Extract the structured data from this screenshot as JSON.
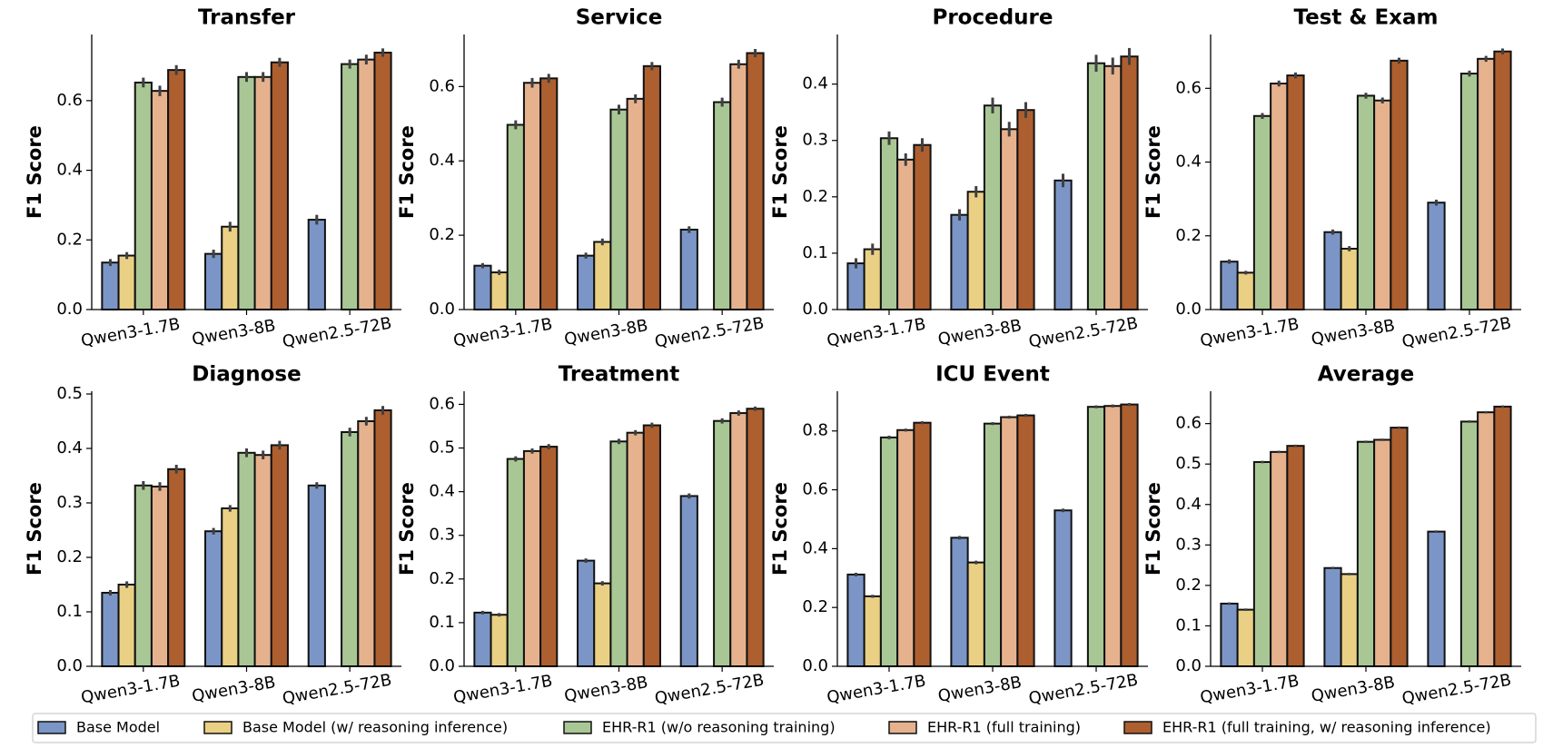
{
  "legend": {
    "series": [
      {
        "name": "Base Model",
        "color": "#7b96c6"
      },
      {
        "name": "Base Model (w/ reasoning inference)",
        "color": "#ead084"
      },
      {
        "name": "EHR-R1 (w/o reasoning training)",
        "color": "#a9c795"
      },
      {
        "name": "EHR-R1 (full training)",
        "color": "#e6b28e"
      },
      {
        "name": "EHR-R1 (full training, w/ reasoning inference)",
        "color": "#ad5f2f"
      }
    ]
  },
  "chart_data": [
    {
      "type": "bar",
      "title": "Transfer",
      "ylabel": "F1 Score",
      "categories": [
        "Qwen3-1.7B",
        "Qwen3-8B",
        "Qwen2.5-72B"
      ],
      "ylim": [
        0,
        0.79
      ],
      "yticks": [
        {
          "value": 0,
          "label": "0.0"
        },
        0.2,
        0.4,
        0.6
      ],
      "series": [
        {
          "values": [
            0.135,
            0.16,
            0.258
          ],
          "errors": [
            0.01,
            0.012,
            0.014
          ]
        },
        {
          "values": [
            0.155,
            0.238,
            null
          ],
          "errors": [
            0.01,
            0.014,
            null
          ]
        },
        {
          "values": [
            0.652,
            0.668,
            0.705
          ],
          "errors": [
            0.014,
            0.014,
            0.013
          ]
        },
        {
          "values": [
            0.628,
            0.668,
            0.718
          ],
          "errors": [
            0.015,
            0.014,
            0.014
          ]
        },
        {
          "values": [
            0.688,
            0.71,
            0.738
          ],
          "errors": [
            0.014,
            0.013,
            0.012
          ]
        }
      ]
    },
    {
      "type": "bar",
      "title": "Service",
      "ylabel": "F1 Score",
      "categories": [
        "Qwen3-1.7B",
        "Qwen3-8B",
        "Qwen2.5-72B"
      ],
      "ylim": [
        0,
        0.74
      ],
      "yticks": [
        {
          "value": 0,
          "label": "0.0"
        },
        0.2,
        0.4,
        0.6
      ],
      "series": [
        {
          "values": [
            0.118,
            0.145,
            0.215
          ],
          "errors": [
            0.007,
            0.008,
            0.009
          ]
        },
        {
          "values": [
            0.1,
            0.182,
            null
          ],
          "errors": [
            0.007,
            0.009,
            null
          ]
        },
        {
          "values": [
            0.497,
            0.538,
            0.558
          ],
          "errors": [
            0.012,
            0.013,
            0.012
          ]
        },
        {
          "values": [
            0.61,
            0.567,
            0.66
          ],
          "errors": [
            0.013,
            0.012,
            0.012
          ]
        },
        {
          "values": [
            0.622,
            0.655,
            0.69
          ],
          "errors": [
            0.012,
            0.011,
            0.011
          ]
        }
      ]
    },
    {
      "type": "bar",
      "title": "Procedure",
      "ylabel": "F1 Score",
      "categories": [
        "Qwen3-1.7B",
        "Qwen3-8B",
        "Qwen2.5-72B"
      ],
      "ylim": [
        0,
        0.488
      ],
      "yticks": [
        {
          "value": 0,
          "label": "0.0"
        },
        0.1,
        0.2,
        0.3,
        0.4
      ],
      "series": [
        {
          "values": [
            0.082,
            0.168,
            0.229
          ],
          "errors": [
            0.009,
            0.01,
            0.012
          ]
        },
        {
          "values": [
            0.107,
            0.209,
            null
          ],
          "errors": [
            0.01,
            0.01,
            null
          ]
        },
        {
          "values": [
            0.304,
            0.362,
            0.437
          ],
          "errors": [
            0.012,
            0.014,
            0.015
          ]
        },
        {
          "values": [
            0.266,
            0.32,
            0.432
          ],
          "errors": [
            0.011,
            0.013,
            0.015
          ]
        },
        {
          "values": [
            0.292,
            0.354,
            0.449
          ],
          "errors": [
            0.012,
            0.014,
            0.015
          ]
        }
      ]
    },
    {
      "type": "bar",
      "title": "Test & Exam",
      "ylabel": "F1 Score",
      "categories": [
        "Qwen3-1.7B",
        "Qwen3-8B",
        "Qwen2.5-72B"
      ],
      "ylim": [
        0,
        0.746
      ],
      "yticks": [
        {
          "value": 0,
          "label": "0.0"
        },
        0.2,
        0.4,
        0.6
      ],
      "series": [
        {
          "values": [
            0.13,
            0.21,
            0.29
          ],
          "errors": [
            0.006,
            0.007,
            0.008
          ]
        },
        {
          "values": [
            0.1,
            0.165,
            null
          ],
          "errors": [
            0.005,
            0.007,
            null
          ]
        },
        {
          "values": [
            0.525,
            0.58,
            0.64
          ],
          "errors": [
            0.008,
            0.008,
            0.008
          ]
        },
        {
          "values": [
            0.613,
            0.567,
            0.68
          ],
          "errors": [
            0.008,
            0.008,
            0.008
          ]
        },
        {
          "values": [
            0.635,
            0.675,
            0.7
          ],
          "errors": [
            0.008,
            0.008,
            0.008
          ]
        }
      ]
    },
    {
      "type": "bar",
      "title": "Diagnose",
      "ylabel": "F1 Score",
      "categories": [
        "Qwen3-1.7B",
        "Qwen3-8B",
        "Qwen2.5-72B"
      ],
      "ylim": [
        0,
        0.505
      ],
      "yticks": [
        {
          "value": 0,
          "label": "0.0"
        },
        0.1,
        0.2,
        0.3,
        0.4,
        0.5
      ],
      "series": [
        {
          "values": [
            0.135,
            0.248,
            0.332
          ],
          "errors": [
            0.005,
            0.006,
            0.006
          ]
        },
        {
          "values": [
            0.15,
            0.29,
            null
          ],
          "errors": [
            0.006,
            0.006,
            null
          ]
        },
        {
          "values": [
            0.332,
            0.392,
            0.43
          ],
          "errors": [
            0.008,
            0.008,
            0.008
          ]
        },
        {
          "values": [
            0.33,
            0.388,
            0.45
          ],
          "errors": [
            0.008,
            0.008,
            0.008
          ]
        },
        {
          "values": [
            0.362,
            0.406,
            0.47
          ],
          "errors": [
            0.008,
            0.008,
            0.008
          ]
        }
      ]
    },
    {
      "type": "bar",
      "title": "Treatment",
      "ylabel": "F1 Score",
      "categories": [
        "Qwen3-1.7B",
        "Qwen3-8B",
        "Qwen2.5-72B"
      ],
      "ylim": [
        0,
        0.63
      ],
      "yticks": [
        {
          "value": 0,
          "label": "0.0"
        },
        0.1,
        0.2,
        0.3,
        0.4,
        0.5,
        0.6
      ],
      "series": [
        {
          "values": [
            0.123,
            0.242,
            0.39
          ],
          "errors": [
            0.004,
            0.005,
            0.006
          ]
        },
        {
          "values": [
            0.118,
            0.19,
            null
          ],
          "errors": [
            0.004,
            0.005,
            null
          ]
        },
        {
          "values": [
            0.475,
            0.515,
            0.562
          ],
          "errors": [
            0.006,
            0.006,
            0.006
          ]
        },
        {
          "values": [
            0.493,
            0.535,
            0.58
          ],
          "errors": [
            0.006,
            0.006,
            0.006
          ]
        },
        {
          "values": [
            0.503,
            0.552,
            0.59
          ],
          "errors": [
            0.006,
            0.006,
            0.005
          ]
        }
      ]
    },
    {
      "type": "bar",
      "title": "ICU Event",
      "ylabel": "F1 Score",
      "categories": [
        "Qwen3-1.7B",
        "Qwen3-8B",
        "Qwen2.5-72B"
      ],
      "ylim": [
        0,
        0.935
      ],
      "yticks": [
        {
          "value": 0,
          "label": "0.0"
        },
        0.2,
        0.4,
        0.6,
        0.8
      ],
      "series": [
        {
          "values": [
            0.312,
            0.437,
            0.53
          ],
          "errors": [
            0.006,
            0.006,
            0.006
          ]
        },
        {
          "values": [
            0.238,
            0.353,
            null
          ],
          "errors": [
            0.005,
            0.006,
            null
          ]
        },
        {
          "values": [
            0.778,
            0.825,
            0.882
          ],
          "errors": [
            0.006,
            0.005,
            0.005
          ]
        },
        {
          "values": [
            0.803,
            0.847,
            0.885
          ],
          "errors": [
            0.005,
            0.005,
            0.005
          ]
        },
        {
          "values": [
            0.828,
            0.853,
            0.89
          ],
          "errors": [
            0.005,
            0.005,
            0.005
          ]
        }
      ]
    },
    {
      "type": "bar",
      "title": "Average",
      "ylabel": "F1 Score",
      "categories": [
        "Qwen3-1.7B",
        "Qwen3-8B",
        "Qwen2.5-72B"
      ],
      "ylim": [
        0,
        0.68
      ],
      "yticks": [
        {
          "value": 0,
          "label": "0.0"
        },
        0.1,
        0.2,
        0.3,
        0.4,
        0.5,
        0.6
      ],
      "series": [
        {
          "values": [
            0.155,
            0.243,
            0.333
          ],
          "errors": [
            0.003,
            0.003,
            0.003
          ]
        },
        {
          "values": [
            0.14,
            0.228,
            null
          ],
          "errors": [
            0.003,
            0.003,
            null
          ]
        },
        {
          "values": [
            0.505,
            0.555,
            0.605
          ],
          "errors": [
            0.003,
            0.003,
            0.003
          ]
        },
        {
          "values": [
            0.53,
            0.56,
            0.628
          ],
          "errors": [
            0.003,
            0.003,
            0.003
          ]
        },
        {
          "values": [
            0.545,
            0.59,
            0.642
          ],
          "errors": [
            0.003,
            0.003,
            0.003
          ]
        }
      ]
    }
  ]
}
